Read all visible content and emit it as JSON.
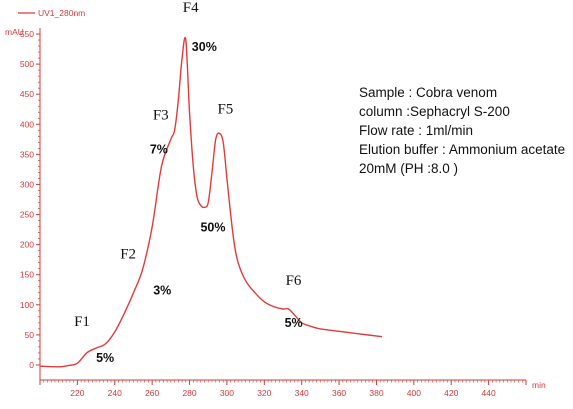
{
  "chart_data": {
    "type": "line",
    "legend": {
      "label": "UV1_280nm",
      "position": "top-left"
    },
    "y_unit": "mAU",
    "x_unit": "min",
    "xlim": [
      200,
      460
    ],
    "ylim": [
      -25,
      560
    ],
    "x_ticks": [
      220,
      240,
      260,
      280,
      300,
      320,
      340,
      360,
      380,
      400,
      420,
      440
    ],
    "y_ticks": [
      0,
      50,
      100,
      150,
      200,
      250,
      300,
      350,
      400,
      450,
      500,
      550
    ],
    "grid": false,
    "series": [
      {
        "name": "UV1_280nm",
        "color": "#e23b3b",
        "x": [
          200,
          210,
          215,
          220,
          225,
          230,
          235,
          240,
          245,
          250,
          255,
          260,
          265,
          270,
          272,
          274,
          276,
          278,
          280,
          282,
          284,
          286,
          288,
          290,
          292,
          294,
          296,
          298,
          300,
          302,
          304,
          306,
          310,
          315,
          320,
          325,
          330,
          333,
          337,
          340,
          345,
          350,
          360,
          370,
          383
        ],
        "y": [
          -2,
          -3,
          -1,
          3,
          20,
          28,
          35,
          55,
          85,
          120,
          160,
          230,
          330,
          375,
          390,
          440,
          510,
          540,
          420,
          330,
          280,
          265,
          262,
          270,
          320,
          375,
          385,
          370,
          310,
          250,
          200,
          170,
          140,
          120,
          105,
          97,
          93,
          93,
          80,
          70,
          64,
          60,
          56,
          52,
          47
        ]
      }
    ],
    "fractions": [
      {
        "label": "F1",
        "percent": "5%",
        "x": 230,
        "y": 28
      },
      {
        "label": "F2",
        "percent": "3%",
        "x": 252,
        "y": 140
      },
      {
        "label": "F3",
        "percent": "7%",
        "x": 270,
        "y": 375
      },
      {
        "label": "F4",
        "percent": "30%",
        "x": 278,
        "y": 540
      },
      {
        "label": "F5",
        "percent": "50%",
        "x": 296,
        "y": 385
      },
      {
        "label": "F6",
        "percent": "5%",
        "x": 333,
        "y": 93
      }
    ]
  },
  "info": {
    "lines": [
      "Sample : Cobra venom",
      "column :Sephacryl S-200",
      "Flow rate : 1ml/min",
      "Elution buffer : Ammonium acetate",
      "20mM (PH :8.0 )"
    ]
  }
}
